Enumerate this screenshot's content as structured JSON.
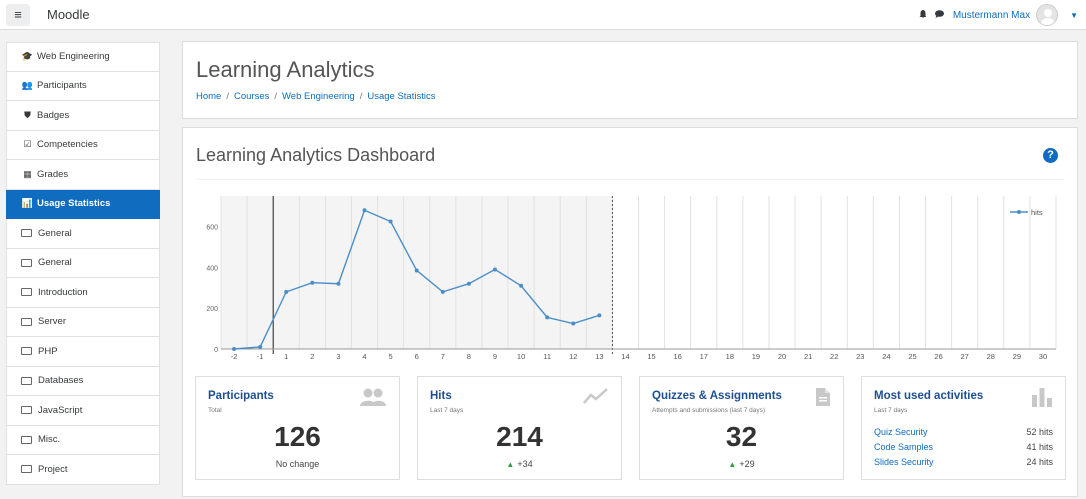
{
  "navbar": {
    "menu_glyph": "≡",
    "brand": "Moodle",
    "user_name": "Mustermann Max"
  },
  "sidebar": {
    "items": [
      {
        "label": "Web Engineering",
        "icon": "graduation-cap-icon",
        "glyph": "🎓",
        "active": false
      },
      {
        "label": "Participants",
        "icon": "users-icon",
        "glyph": "👥",
        "active": false
      },
      {
        "label": "Badges",
        "icon": "shield-icon",
        "glyph": "⛊",
        "active": false
      },
      {
        "label": "Competencies",
        "icon": "checkbox-icon",
        "glyph": "☑",
        "active": false
      },
      {
        "label": "Grades",
        "icon": "table-icon",
        "glyph": "▦",
        "active": false
      },
      {
        "label": "Usage Statistics",
        "icon": "bar-chart-icon",
        "glyph": "📊",
        "active": true
      },
      {
        "label": "General",
        "icon": "folder-icon",
        "active": false
      },
      {
        "label": "General",
        "icon": "folder-icon",
        "active": false
      },
      {
        "label": "Introduction",
        "icon": "folder-icon",
        "active": false
      },
      {
        "label": "Server",
        "icon": "folder-icon",
        "active": false
      },
      {
        "label": "PHP",
        "icon": "folder-icon",
        "active": false
      },
      {
        "label": "Databases",
        "icon": "folder-icon",
        "active": false
      },
      {
        "label": "JavaScript",
        "icon": "folder-icon",
        "active": false
      },
      {
        "label": "Misc.",
        "icon": "folder-icon",
        "active": false
      },
      {
        "label": "Project",
        "icon": "folder-icon",
        "active": false
      }
    ]
  },
  "header": {
    "title": "Learning Analytics",
    "breadcrumb": [
      "Home",
      "Courses",
      "Web Engineering",
      "Usage Statistics"
    ],
    "separator": "/"
  },
  "dashboard": {
    "title": "Learning Analytics Dashboard",
    "help_glyph": "?"
  },
  "chart_data": {
    "type": "line",
    "series": [
      {
        "name": "hits",
        "x": [
          -2,
          -1,
          1,
          2,
          3,
          4,
          5,
          6,
          7,
          8,
          9,
          10,
          11,
          12,
          13
        ],
        "values": [
          0,
          10,
          280,
          325,
          320,
          680,
          625,
          385,
          280,
          320,
          390,
          310,
          155,
          125,
          165
        ]
      }
    ],
    "x_ticks": [
      "-2",
      "-1",
      "1",
      "2",
      "3",
      "4",
      "5",
      "6",
      "7",
      "8",
      "9",
      "10",
      "11",
      "12",
      "13",
      "14",
      "15",
      "16",
      "17",
      "18",
      "19",
      "20",
      "21",
      "22",
      "23",
      "24",
      "25",
      "26",
      "27",
      "28",
      "29",
      "30"
    ],
    "y_ticks": [
      "0",
      "200",
      "400",
      "600"
    ],
    "ylim": [
      0,
      750
    ],
    "today_marker": "-1",
    "past_until": "13",
    "legend_position": "top-right",
    "line_color": "#4a8ec9",
    "grid": true
  },
  "cards": [
    {
      "title": "Participants",
      "subtitle": "Total",
      "value": "126",
      "footer": "No change",
      "icon": "users-icon",
      "glyph": "👥",
      "trend": ""
    },
    {
      "title": "Hits",
      "subtitle": "Last 7 days",
      "value": "214",
      "footer": "+34",
      "icon": "trend-line-icon",
      "glyph": "",
      "trend": "▲"
    },
    {
      "title": "Quizzes & Assignments",
      "subtitle": "Attempts and submissions (last 7 days)",
      "value": "32",
      "footer": "+29",
      "icon": "document-icon",
      "glyph": "",
      "trend": "▲"
    },
    {
      "title": "Most used activities",
      "subtitle": "Last 7 days",
      "icon": "bar-chart-icon",
      "activities": [
        {
          "name": "Quiz Security",
          "hits": "52 hits"
        },
        {
          "name": "Code Samples",
          "hits": "41 hits"
        },
        {
          "name": "Slides Security",
          "hits": "24 hits"
        }
      ]
    }
  ]
}
